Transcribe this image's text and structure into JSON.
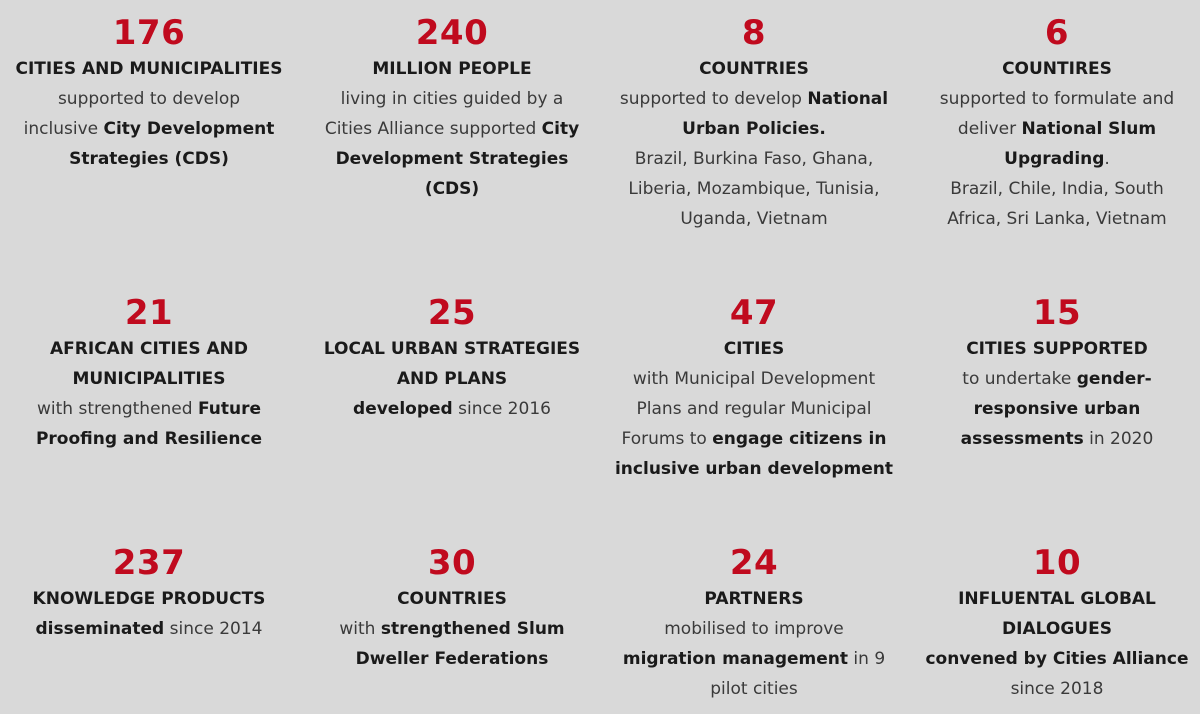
{
  "stats": [
    {
      "number": "176",
      "heading": [
        "CITIES AND MUNICIPALITIES"
      ],
      "body": [
        [
          {
            "t": "supported to develop"
          }
        ],
        [
          {
            "t": "inclusive "
          },
          {
            "t": "City Development",
            "b": true
          }
        ],
        [
          {
            "t": "Strategies (CDS)",
            "b": true
          }
        ]
      ]
    },
    {
      "number": "240",
      "heading": [
        "MILLION PEOPLE"
      ],
      "body": [
        [
          {
            "t": "living in cities guided by a"
          }
        ],
        [
          {
            "t": "Cities Alliance supported "
          },
          {
            "t": "City",
            "b": true
          }
        ],
        [
          {
            "t": "Development Strategies (CDS)",
            "b": true
          }
        ]
      ]
    },
    {
      "number": "8",
      "heading": [
        "COUNTRIES"
      ],
      "body": [
        [
          {
            "t": "supported to develop "
          },
          {
            "t": "National",
            "b": true
          }
        ],
        [
          {
            "t": "Urban Policies.",
            "b": true
          }
        ],
        [
          {
            "t": "Brazil, Burkina Faso, Ghana,"
          }
        ],
        [
          {
            "t": "Liberia, Mozambique, Tunisia,"
          }
        ],
        [
          {
            "t": "Uganda, Vietnam"
          }
        ]
      ]
    },
    {
      "number": "6",
      "heading": [
        "COUNTIRES"
      ],
      "body": [
        [
          {
            "t": "supported to formulate and"
          }
        ],
        [
          {
            "t": "deliver "
          },
          {
            "t": "National Slum",
            "b": true
          }
        ],
        [
          {
            "t": "Upgrading",
            "b": true
          },
          {
            "t": "."
          }
        ],
        [
          {
            "t": "Brazil, Chile, India, South"
          }
        ],
        [
          {
            "t": "Africa, Sri Lanka, Vietnam"
          }
        ]
      ]
    },
    {
      "number": "21",
      "heading": [
        "AFRICAN CITIES AND",
        "MUNICIPALITIES"
      ],
      "body": [
        [
          {
            "t": "with strengthened "
          },
          {
            "t": "Future",
            "b": true
          }
        ],
        [
          {
            "t": "Proofing and Resilience",
            "b": true
          }
        ]
      ]
    },
    {
      "number": "25",
      "heading": [
        "LOCAL URBAN STRATEGIES",
        "AND PLANS"
      ],
      "body": [
        [
          {
            "t": "developed",
            "b": true
          },
          {
            "t": " since 2016"
          }
        ]
      ]
    },
    {
      "number": "47",
      "heading": [
        "CITIES"
      ],
      "body": [
        [
          {
            "t": "with Municipal Development"
          }
        ],
        [
          {
            "t": "Plans and regular Municipal"
          }
        ],
        [
          {
            "t": "Forums to "
          },
          {
            "t": "engage citizens in",
            "b": true
          }
        ],
        [
          {
            "t": "inclusive urban development",
            "b": true
          }
        ]
      ]
    },
    {
      "number": "15",
      "heading": [
        "CITIES SUPPORTED"
      ],
      "body": [
        [
          {
            "t": "to undertake "
          },
          {
            "t": "gender-",
            "b": true
          }
        ],
        [
          {
            "t": "responsive urban",
            "b": true
          }
        ],
        [
          {
            "t": "assessments",
            "b": true
          },
          {
            "t": " in 2020"
          }
        ]
      ]
    },
    {
      "number": "237",
      "heading": [
        "KNOWLEDGE PRODUCTS"
      ],
      "body": [
        [
          {
            "t": "disseminated",
            "b": true
          },
          {
            "t": " since 2014"
          }
        ]
      ]
    },
    {
      "number": "30",
      "heading": [
        "COUNTRIES"
      ],
      "body": [
        [
          {
            "t": "with "
          },
          {
            "t": "strengthened Slum",
            "b": true
          }
        ],
        [
          {
            "t": "Dweller Federations",
            "b": true
          }
        ]
      ]
    },
    {
      "number": "24",
      "heading": [
        "PARTNERS"
      ],
      "body": [
        [
          {
            "t": "mobilised to improve"
          }
        ],
        [
          {
            "t": "migration management",
            "b": true
          },
          {
            "t": " in 9"
          }
        ],
        [
          {
            "t": "pilot cities"
          }
        ]
      ]
    },
    {
      "number": "10",
      "heading": [
        "INFLUENTAL GLOBAL",
        "DIALOGUES"
      ],
      "body": [
        [
          {
            "t": "convened by Cities Alliance",
            "b": true
          }
        ],
        [
          {
            "t": "since 2018"
          }
        ]
      ]
    }
  ],
  "colors": {
    "background": "#d9d9d9",
    "accent": "#c00a1e",
    "text": "#1a1a1a"
  }
}
